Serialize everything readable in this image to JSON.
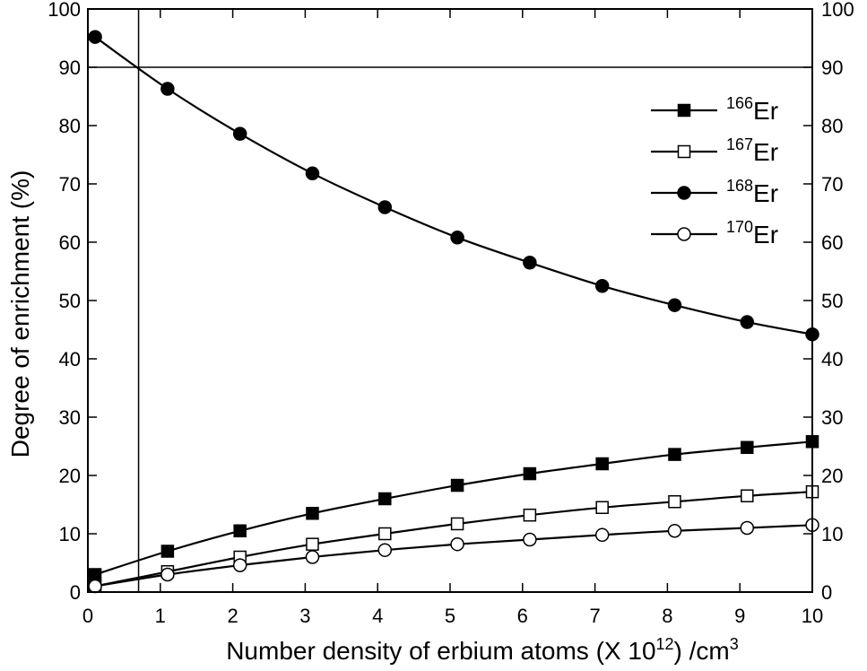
{
  "chart_data": {
    "type": "line",
    "xlabel": {
      "main": "Number density of erbium atoms (X 10",
      "exp1": "12",
      "mid": ") /cm",
      "exp2": "3"
    },
    "ylabel": "Degree of enrichment (%)",
    "xlim": [
      0,
      10
    ],
    "ylim": [
      0,
      100
    ],
    "xticks": [
      "0",
      "1",
      "2",
      "3",
      "4",
      "5",
      "6",
      "7",
      "8",
      "9",
      "10"
    ],
    "yticks": [
      "0",
      "10",
      "20",
      "30",
      "40",
      "50",
      "60",
      "70",
      "80",
      "90",
      "100"
    ],
    "reference_lines": {
      "horizontal_y": 90,
      "vertical_x": 0.7
    },
    "legend_position": "top-right",
    "x": [
      0.1,
      1.1,
      2.1,
      3.1,
      4.1,
      5.1,
      6.1,
      7.1,
      8.1,
      9.1,
      10.0
    ],
    "series": [
      {
        "name": {
          "mass": "166",
          "element": "Er"
        },
        "marker": "filled-square",
        "values": [
          3.0,
          7.0,
          10.5,
          13.5,
          16.0,
          18.3,
          20.3,
          22.0,
          23.6,
          24.8,
          25.8
        ]
      },
      {
        "name": {
          "mass": "167",
          "element": "Er"
        },
        "marker": "open-square",
        "values": [
          1.0,
          3.5,
          6.0,
          8.2,
          10.0,
          11.7,
          13.2,
          14.5,
          15.5,
          16.5,
          17.2
        ]
      },
      {
        "name": {
          "mass": "168",
          "element": "Er"
        },
        "marker": "filled-circle",
        "values": [
          95.2,
          86.3,
          78.6,
          71.8,
          66.0,
          60.8,
          56.5,
          52.5,
          49.2,
          46.3,
          44.2
        ]
      },
      {
        "name": {
          "mass": "170",
          "element": "Er"
        },
        "marker": "open-circle",
        "values": [
          1.0,
          3.0,
          4.6,
          6.0,
          7.2,
          8.2,
          9.0,
          9.8,
          10.5,
          11.0,
          11.5
        ]
      }
    ]
  }
}
